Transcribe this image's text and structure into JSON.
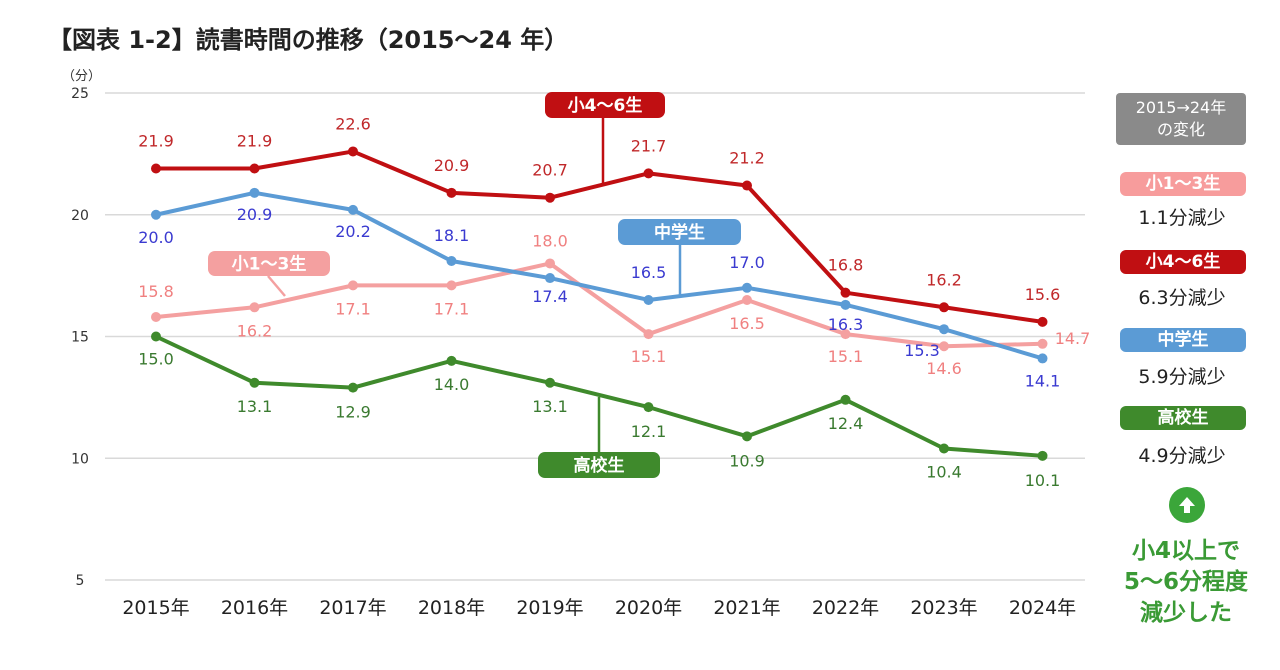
{
  "title": "【図表 1-2】読書時間の推移（2015～24 年）",
  "chart_data": {
    "type": "line",
    "ylabel": "（分）",
    "ylim": [
      5,
      25
    ],
    "yticks": [
      25,
      20,
      15,
      10,
      5
    ],
    "categories": [
      "2015年",
      "2016年",
      "2017年",
      "2018年",
      "2019年",
      "2020年",
      "2021年",
      "2022年",
      "2023年",
      "2024年"
    ],
    "series": [
      {
        "name": "小4～6生",
        "color": "#c00f12",
        "label_color": "#c0282a",
        "values": [
          21.9,
          21.9,
          22.6,
          20.9,
          20.7,
          21.7,
          21.2,
          16.8,
          16.2,
          15.6
        ]
      },
      {
        "name": "中学生",
        "color": "#5b9bd5",
        "label_color": "#3a3ad0",
        "values": [
          20.0,
          20.9,
          20.2,
          18.1,
          17.4,
          16.5,
          17.0,
          16.3,
          15.3,
          14.1
        ]
      },
      {
        "name": "小1～3生",
        "color": "#f4a0a0",
        "label_color": "#f08080",
        "values": [
          15.8,
          16.2,
          17.1,
          17.1,
          18.0,
          15.1,
          16.5,
          15.1,
          14.6,
          14.7
        ]
      },
      {
        "name": "高校生",
        "color": "#3f8a2c",
        "label_color": "#3a7a30",
        "values": [
          15.0,
          13.1,
          12.9,
          14.0,
          13.1,
          12.1,
          10.9,
          12.4,
          10.4,
          10.1
        ]
      }
    ],
    "grid": true
  },
  "side_panel": {
    "header_line1": "2015→24年",
    "header_line2": "の変化",
    "items": [
      {
        "label": "小1～3生",
        "change": "1.1分減少",
        "color": "#f79c9c"
      },
      {
        "label": "小4～6生",
        "change": "6.3分減少",
        "color": "#c00f12"
      },
      {
        "label": "中学生",
        "change": "5.9分減少",
        "color": "#5b9bd5"
      },
      {
        "label": "高校生",
        "change": "4.9分減少",
        "color": "#3f8a2c"
      }
    ],
    "conclusion_line1": "小4以上で",
    "conclusion_line2": "5～6分程度",
    "conclusion_line3": "減少した",
    "up_icon": "up-arrow-icon"
  }
}
